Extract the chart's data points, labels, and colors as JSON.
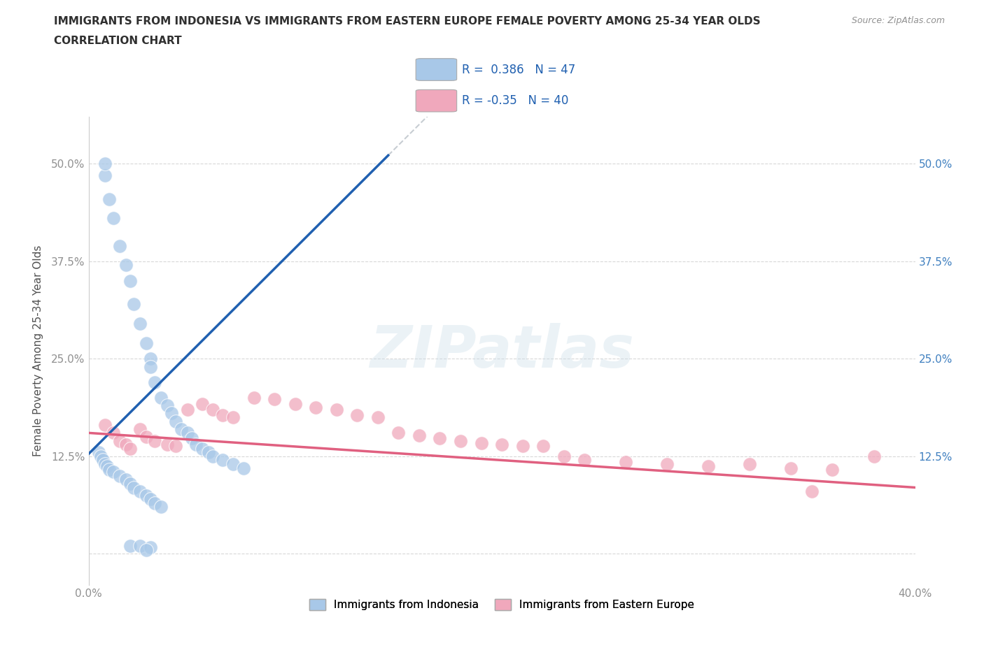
{
  "title_line1": "IMMIGRANTS FROM INDONESIA VS IMMIGRANTS FROM EASTERN EUROPE FEMALE POVERTY AMONG 25-34 YEAR OLDS",
  "title_line2": "CORRELATION CHART",
  "source": "Source: ZipAtlas.com",
  "ylabel": "Female Poverty Among 25-34 Year Olds",
  "xlim": [
    0.0,
    0.4
  ],
  "ylim": [
    -0.04,
    0.56
  ],
  "xticks": [
    0.0,
    0.1,
    0.2,
    0.3,
    0.4
  ],
  "xticklabels": [
    "0.0%",
    "",
    "",
    "",
    "40.0%"
  ],
  "yticks": [
    0.0,
    0.125,
    0.25,
    0.375,
    0.5
  ],
  "yticklabels": [
    "",
    "12.5%",
    "25.0%",
    "37.5%",
    "50.0%"
  ],
  "R_blue": 0.386,
  "N_blue": 47,
  "R_pink": -0.35,
  "N_pink": 40,
  "blue_color": "#a8c8e8",
  "pink_color": "#f0a8bc",
  "blue_line_color": "#2060b0",
  "pink_line_color": "#e06080",
  "background_color": "#ffffff",
  "grid_color": "#d8d8d8",
  "title_color": "#303030",
  "axis_label_color": "#505050",
  "tick_color_left": "#909090",
  "tick_color_right": "#4080c0",
  "watermark": "ZIPatlas",
  "legend_label_blue": "Immigrants from Indonesia",
  "legend_label_pink": "Immigrants from Eastern Europe",
  "blue_scatter_x": [
    0.008,
    0.008,
    0.01,
    0.012,
    0.015,
    0.018,
    0.02,
    0.022,
    0.025,
    0.028,
    0.03,
    0.03,
    0.032,
    0.035,
    0.038,
    0.04,
    0.042,
    0.045,
    0.048,
    0.05,
    0.052,
    0.055,
    0.058,
    0.06,
    0.065,
    0.07,
    0.075,
    0.005,
    0.006,
    0.007,
    0.008,
    0.009,
    0.01,
    0.012,
    0.015,
    0.018,
    0.02,
    0.022,
    0.025,
    0.028,
    0.03,
    0.032,
    0.035,
    0.02,
    0.025,
    0.03,
    0.028
  ],
  "blue_scatter_y": [
    0.485,
    0.5,
    0.455,
    0.43,
    0.395,
    0.37,
    0.35,
    0.32,
    0.295,
    0.27,
    0.25,
    0.24,
    0.22,
    0.2,
    0.19,
    0.18,
    0.17,
    0.16,
    0.155,
    0.148,
    0.14,
    0.135,
    0.13,
    0.125,
    0.12,
    0.115,
    0.11,
    0.13,
    0.125,
    0.12,
    0.115,
    0.112,
    0.108,
    0.105,
    0.1,
    0.095,
    0.09,
    0.085,
    0.08,
    0.075,
    0.07,
    0.065,
    0.06,
    0.01,
    0.01,
    0.008,
    0.005
  ],
  "pink_scatter_x": [
    0.008,
    0.012,
    0.015,
    0.018,
    0.02,
    0.025,
    0.028,
    0.032,
    0.038,
    0.042,
    0.048,
    0.055,
    0.06,
    0.065,
    0.07,
    0.08,
    0.09,
    0.1,
    0.11,
    0.12,
    0.13,
    0.14,
    0.15,
    0.16,
    0.17,
    0.18,
    0.19,
    0.2,
    0.21,
    0.22,
    0.23,
    0.24,
    0.26,
    0.28,
    0.3,
    0.32,
    0.34,
    0.36,
    0.38,
    0.35
  ],
  "pink_scatter_y": [
    0.165,
    0.155,
    0.145,
    0.14,
    0.135,
    0.16,
    0.15,
    0.145,
    0.14,
    0.138,
    0.185,
    0.192,
    0.185,
    0.178,
    0.175,
    0.2,
    0.198,
    0.192,
    0.188,
    0.185,
    0.178,
    0.175,
    0.155,
    0.152,
    0.148,
    0.145,
    0.142,
    0.14,
    0.138,
    0.138,
    0.125,
    0.12,
    0.118,
    0.115,
    0.112,
    0.115,
    0.11,
    0.108,
    0.125,
    0.08
  ]
}
